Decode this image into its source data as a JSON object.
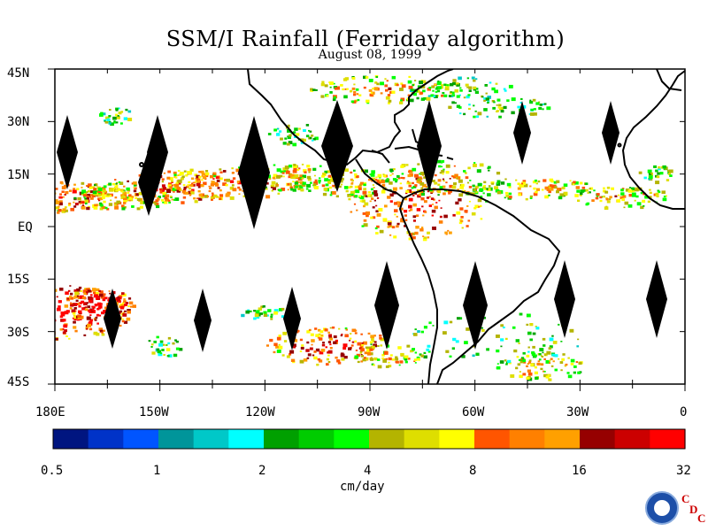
{
  "title": "SSM/I Rainfall (Ferriday algorithm)",
  "subtitle": "August 08, 1999",
  "map": {
    "lat_labels": [
      "45N",
      "30N",
      "15N",
      "EQ",
      "15S",
      "30S",
      "45S"
    ],
    "lon_labels": [
      "180E",
      "150W",
      "120W",
      "90W",
      "60W",
      "30W",
      "0"
    ],
    "colors": {
      "frame": "#000000",
      "land_fill": "#ffffff",
      "missing_swath": "#000000"
    }
  },
  "colorbar": {
    "colors": [
      "#001580",
      "#0033c8",
      "#0055ff",
      "#00959a",
      "#00c8c8",
      "#00ffff",
      "#00a000",
      "#00cc00",
      "#00ff00",
      "#b4b400",
      "#dede00",
      "#ffff00",
      "#ff5500",
      "#ff8000",
      "#ffa000",
      "#960000",
      "#cc0000",
      "#ff0000"
    ],
    "tick_labels": [
      "0.5",
      "1",
      "2",
      "4",
      "8",
      "16",
      "32"
    ],
    "unit_label": "cm/day"
  },
  "logo": {
    "name": "noaa-logo",
    "text": "NOAA",
    "cdc": [
      "C",
      "D",
      "C"
    ]
  }
}
